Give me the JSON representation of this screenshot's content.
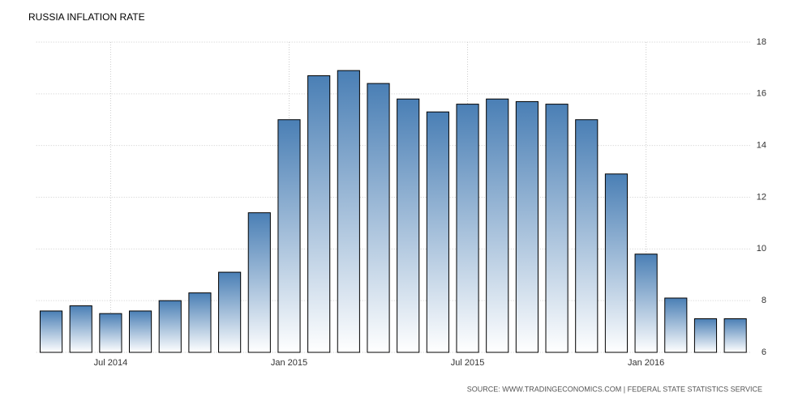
{
  "chart_data": {
    "type": "bar",
    "title": "RUSSIA INFLATION RATE",
    "categories": [
      null,
      null,
      "Jul 2014",
      null,
      null,
      null,
      null,
      null,
      "Jan 2015",
      null,
      null,
      null,
      null,
      null,
      "Jul 2015",
      null,
      null,
      null,
      null,
      null,
      "Jan 2016",
      null,
      null,
      null
    ],
    "values": [
      7.6,
      7.8,
      7.5,
      7.6,
      8.0,
      8.3,
      9.1,
      11.4,
      15.0,
      16.7,
      16.9,
      16.4,
      15.8,
      15.3,
      15.6,
      15.8,
      15.7,
      15.6,
      15.0,
      12.9,
      9.8,
      8.1,
      7.3,
      7.3
    ],
    "color": "#4a7fb5",
    "ylim": [
      6,
      18
    ],
    "yticks": [
      6,
      8,
      10,
      12,
      14,
      16,
      18
    ],
    "grid": true,
    "source": "SOURCE: WWW.TRADINGECONOMICS.COM | FEDERAL STATE STATISTICS SERVICE"
  }
}
